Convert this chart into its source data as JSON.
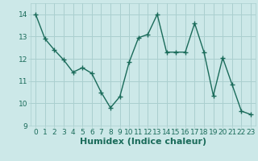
{
  "x": [
    0,
    1,
    2,
    3,
    4,
    5,
    6,
    7,
    8,
    9,
    10,
    11,
    12,
    13,
    14,
    15,
    16,
    17,
    18,
    19,
    20,
    21,
    22,
    23
  ],
  "y": [
    14.0,
    12.9,
    12.4,
    11.95,
    11.4,
    11.6,
    11.35,
    10.5,
    9.8,
    10.3,
    11.85,
    12.95,
    13.1,
    14.0,
    12.3,
    12.3,
    12.3,
    13.6,
    12.3,
    10.35,
    12.05,
    10.85,
    9.65,
    9.5
  ],
  "line_color": "#1a6b5a",
  "marker": "+",
  "marker_size": 4,
  "marker_edge_width": 1.0,
  "bg_color": "#cce8e8",
  "grid_color": "#aacfcf",
  "xlabel": "Humidex (Indice chaleur)",
  "xlabel_fontsize": 8,
  "xlim": [
    -0.5,
    23.5
  ],
  "ylim": [
    9.0,
    14.5
  ],
  "yticks": [
    9,
    10,
    11,
    12,
    13,
    14
  ],
  "xticks": [
    0,
    1,
    2,
    3,
    4,
    5,
    6,
    7,
    8,
    9,
    10,
    11,
    12,
    13,
    14,
    15,
    16,
    17,
    18,
    19,
    20,
    21,
    22,
    23
  ],
  "tick_fontsize": 6.5,
  "line_width": 1.0
}
